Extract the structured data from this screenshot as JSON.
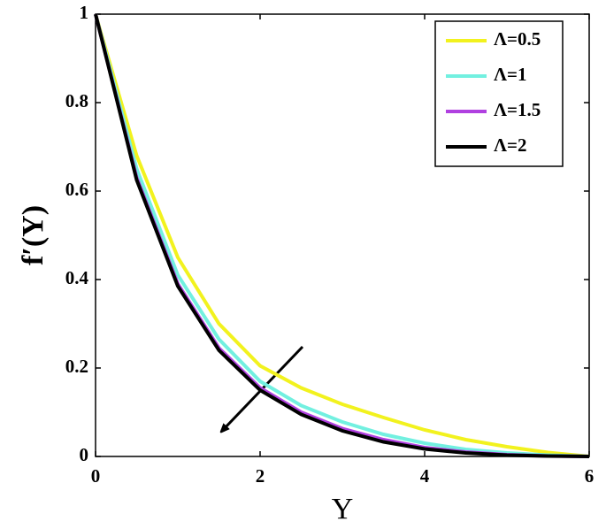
{
  "chart_data": {
    "type": "line",
    "xlabel": "Υ",
    "ylabel": "f′(Υ)",
    "x": [
      0,
      0.5,
      1,
      1.5,
      2,
      2.5,
      3,
      3.5,
      4,
      4.5,
      5,
      5.5,
      6
    ],
    "series": [
      {
        "name": "Λ=0.5",
        "color": "#f2f21e",
        "values": [
          1,
          0.68,
          0.45,
          0.3,
          0.205,
          0.155,
          0.118,
          0.088,
          0.06,
          0.038,
          0.022,
          0.009,
          0
        ]
      },
      {
        "name": "Λ=1",
        "color": "#72f0e0",
        "values": [
          1,
          0.65,
          0.41,
          0.265,
          0.17,
          0.115,
          0.078,
          0.05,
          0.03,
          0.016,
          0.008,
          0.003,
          0
        ]
      },
      {
        "name": "Λ=1.5",
        "color": "#b040e0",
        "values": [
          1,
          0.63,
          0.39,
          0.245,
          0.155,
          0.1,
          0.063,
          0.038,
          0.02,
          0.01,
          0.004,
          0.001,
          0
        ]
      },
      {
        "name": "Λ=2",
        "color": "#000000",
        "values": [
          1,
          0.625,
          0.385,
          0.24,
          0.15,
          0.095,
          0.058,
          0.033,
          0.017,
          0.008,
          0.003,
          0.001,
          0
        ]
      }
    ],
    "xlim": [
      0,
      6
    ],
    "xticks": [
      0,
      2,
      4,
      6
    ],
    "ylim": [
      0,
      1
    ],
    "yticks": [
      0,
      0.2,
      0.4,
      0.6,
      0.8,
      1
    ],
    "legend": "upper right"
  }
}
